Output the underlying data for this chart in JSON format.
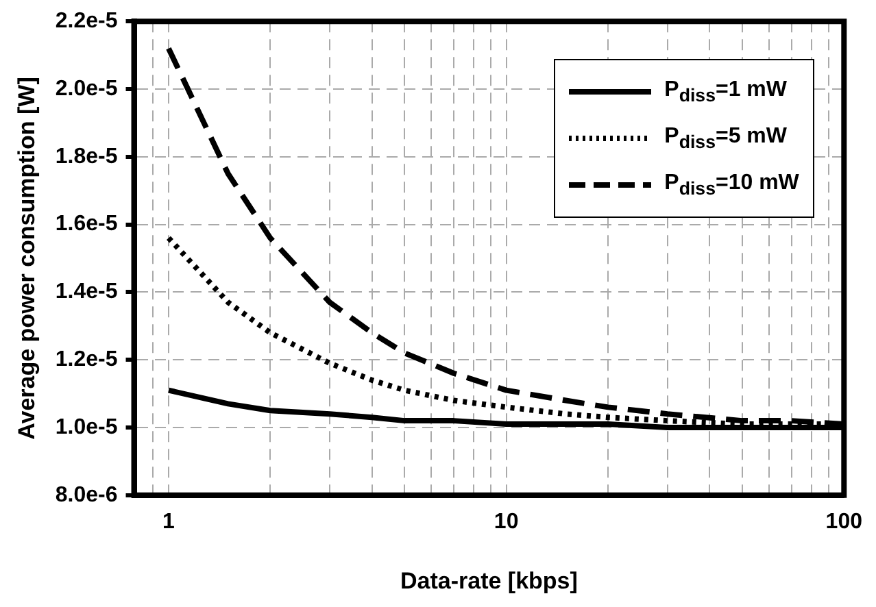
{
  "chart_data": {
    "type": "line",
    "xlabel": "Data-rate [kbps]",
    "ylabel": "Average power consumption [W]",
    "x": [
      1,
      1.5,
      2,
      3,
      4,
      5,
      7,
      10,
      15,
      20,
      30,
      50,
      70,
      100
    ],
    "series": [
      {
        "name": "P$_{diss}$=1 mW",
        "color": "#000000",
        "line_style": "solid",
        "values": [
          1.11e-05,
          1.07e-05,
          1.05e-05,
          1.04e-05,
          1.03e-05,
          1.02e-05,
          1.02e-05,
          1.01e-05,
          1.01e-05,
          1.01e-05,
          1e-05,
          1e-05,
          1e-05,
          1e-05
        ]
      },
      {
        "name": "P$_{diss}$=5 mW",
        "color": "#000000",
        "line_style": "dotted",
        "values": [
          1.56e-05,
          1.37e-05,
          1.28e-05,
          1.19e-05,
          1.14e-05,
          1.11e-05,
          1.08e-05,
          1.06e-05,
          1.04e-05,
          1.03e-05,
          1.02e-05,
          1.01e-05,
          1.01e-05,
          1.01e-05
        ]
      },
      {
        "name": "P$_{diss}$=10 mW",
        "color": "#000000",
        "line_style": "dashed",
        "values": [
          2.12e-05,
          1.75e-05,
          1.56e-05,
          1.37e-05,
          1.28e-05,
          1.22e-05,
          1.16e-05,
          1.11e-05,
          1.08e-05,
          1.06e-05,
          1.04e-05,
          1.02e-05,
          1.02e-05,
          1.01e-05
        ]
      }
    ],
    "log": "x",
    "xlim": [
      0.79,
      100
    ],
    "xticks": [
      {
        "value": 0.8,
        "label": null
      },
      {
        "value": 0.9,
        "label": null
      },
      1,
      {
        "value": 2,
        "label": null
      },
      {
        "value": 3,
        "label": null
      },
      {
        "value": 4,
        "label": null
      },
      {
        "value": 5,
        "label": null
      },
      {
        "value": 6,
        "label": null
      },
      {
        "value": 7,
        "label": null
      },
      {
        "value": 8,
        "label": null
      },
      {
        "value": 9,
        "label": null
      },
      10,
      {
        "value": 20,
        "label": null
      },
      {
        "value": 30,
        "label": null
      },
      {
        "value": 40,
        "label": null
      },
      {
        "value": 50,
        "label": null
      },
      {
        "value": 60,
        "label": null
      },
      {
        "value": 70,
        "label": null
      },
      {
        "value": 80,
        "label": null
      },
      {
        "value": 90,
        "label": null
      },
      100
    ],
    "ylim": [
      8e-06,
      2.2e-05
    ],
    "yticks": [
      {
        "value": 8e-06,
        "label": "8.0e-6"
      },
      {
        "value": 1e-05,
        "label": "1.0e-5"
      },
      {
        "value": 1.2e-05,
        "label": "1.2e-5"
      },
      {
        "value": 1.4e-05,
        "label": "1.4e-5"
      },
      {
        "value": 1.6e-05,
        "label": "1.6e-5"
      },
      {
        "value": 1.8e-05,
        "label": "1.8e-5"
      },
      {
        "value": 2e-05,
        "label": "2.0e-5"
      },
      {
        "value": 2.2e-05,
        "label": "2.2e-5"
      }
    ],
    "grid": true,
    "legend": "top right"
  }
}
